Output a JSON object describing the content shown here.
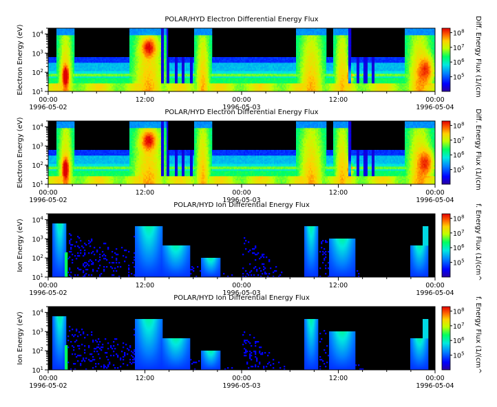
{
  "chart_data": [
    {
      "type": "heatmap",
      "title": "POLAR/HYD  Electron Differential Energy Flux",
      "ylabel": "Electron Energy (eV)",
      "colorbar_label": "Diff. Energy Flux (1/(cm",
      "species": "electron",
      "yscale": "log",
      "ylim": [
        10,
        20000
      ],
      "yticks": [
        {
          "base": "10",
          "exp": "1"
        },
        {
          "base": "10",
          "exp": "2"
        },
        {
          "base": "10",
          "exp": "3"
        },
        {
          "base": "10",
          "exp": "4"
        }
      ],
      "colorbar_ticks": [
        {
          "base": "10",
          "exp": "5"
        },
        {
          "base": "10",
          "exp": "6"
        },
        {
          "base": "10",
          "exp": "7"
        },
        {
          "base": "10",
          "exp": "8"
        }
      ],
      "colorbar_range": [
        10000,
        200000000
      ],
      "xlim": [
        "1996-05-02 00:00",
        "1996-05-04 00:00"
      ],
      "xticks": [
        {
          "time": "00:00",
          "date": "1996-05-02"
        },
        {
          "time": "12:00",
          "date": ""
        },
        {
          "time": "00:00",
          "date": "1996-05-03"
        },
        {
          "time": "12:00",
          "date": ""
        },
        {
          "time": "00:00",
          "date": "1996-05-04"
        }
      ]
    },
    {
      "type": "heatmap",
      "title": "POLAR/HYD  Electron Differential Energy Flux",
      "ylabel": "Electron Energy (eV)",
      "colorbar_label": "Diff. Energy Flux (1/(cm",
      "species": "electron",
      "yscale": "log",
      "ylim": [
        10,
        20000
      ],
      "yticks": [
        {
          "base": "10",
          "exp": "1"
        },
        {
          "base": "10",
          "exp": "2"
        },
        {
          "base": "10",
          "exp": "3"
        },
        {
          "base": "10",
          "exp": "4"
        }
      ],
      "colorbar_ticks": [
        {
          "base": "10",
          "exp": "5"
        },
        {
          "base": "10",
          "exp": "6"
        },
        {
          "base": "10",
          "exp": "7"
        },
        {
          "base": "10",
          "exp": "8"
        }
      ],
      "colorbar_range": [
        10000,
        200000000
      ],
      "xlim": [
        "1996-05-02 00:00",
        "1996-05-04 00:00"
      ],
      "xticks": [
        {
          "time": "00:00",
          "date": "1996-05-02"
        },
        {
          "time": "12:00",
          "date": ""
        },
        {
          "time": "00:00",
          "date": "1996-05-03"
        },
        {
          "time": "12:00",
          "date": ""
        },
        {
          "time": "00:00",
          "date": "1996-05-04"
        }
      ]
    },
    {
      "type": "heatmap",
      "title": "POLAR/HYD  Ion Differential Energy Flux",
      "ylabel": "Ion Energy (eV)",
      "colorbar_label": "f. Energy Flux (1/(cm^",
      "species": "ion",
      "yscale": "log",
      "ylim": [
        10,
        20000
      ],
      "yticks": [
        {
          "base": "10",
          "exp": "1"
        },
        {
          "base": "10",
          "exp": "2"
        },
        {
          "base": "10",
          "exp": "3"
        },
        {
          "base": "10",
          "exp": "4"
        }
      ],
      "colorbar_ticks": [
        {
          "base": "10",
          "exp": "5"
        },
        {
          "base": "10",
          "exp": "6"
        },
        {
          "base": "10",
          "exp": "7"
        },
        {
          "base": "10",
          "exp": "8"
        }
      ],
      "colorbar_range": [
        10000,
        200000000
      ],
      "xlim": [
        "1996-05-02 00:00",
        "1996-05-04 00:00"
      ],
      "xticks": [
        {
          "time": "00:00",
          "date": "1996-05-02"
        },
        {
          "time": "12:00",
          "date": ""
        },
        {
          "time": "00:00",
          "date": "1996-05-03"
        },
        {
          "time": "12:00",
          "date": ""
        },
        {
          "time": "00:00",
          "date": "1996-05-04"
        }
      ]
    },
    {
      "type": "heatmap",
      "title": "POLAR/HYD  Ion Differential Energy Flux",
      "ylabel": "Ion Energy (eV)",
      "colorbar_label": "f. Energy Flux (1/(cm^",
      "species": "ion",
      "yscale": "log",
      "ylim": [
        10,
        20000
      ],
      "yticks": [
        {
          "base": "10",
          "exp": "1"
        },
        {
          "base": "10",
          "exp": "2"
        },
        {
          "base": "10",
          "exp": "3"
        },
        {
          "base": "10",
          "exp": "4"
        }
      ],
      "colorbar_ticks": [
        {
          "base": "10",
          "exp": "5"
        },
        {
          "base": "10",
          "exp": "6"
        },
        {
          "base": "10",
          "exp": "7"
        },
        {
          "base": "10",
          "exp": "8"
        }
      ],
      "colorbar_range": [
        10000,
        200000000
      ],
      "xlim": [
        "1996-05-02 00:00",
        "1996-05-04 00:00"
      ],
      "xticks": [
        {
          "time": "00:00",
          "date": "1996-05-02"
        },
        {
          "time": "12:00",
          "date": ""
        },
        {
          "time": "00:00",
          "date": "1996-05-03"
        },
        {
          "time": "12:00",
          "date": ""
        },
        {
          "time": "00:00",
          "date": "1996-05-04"
        }
      ]
    }
  ]
}
